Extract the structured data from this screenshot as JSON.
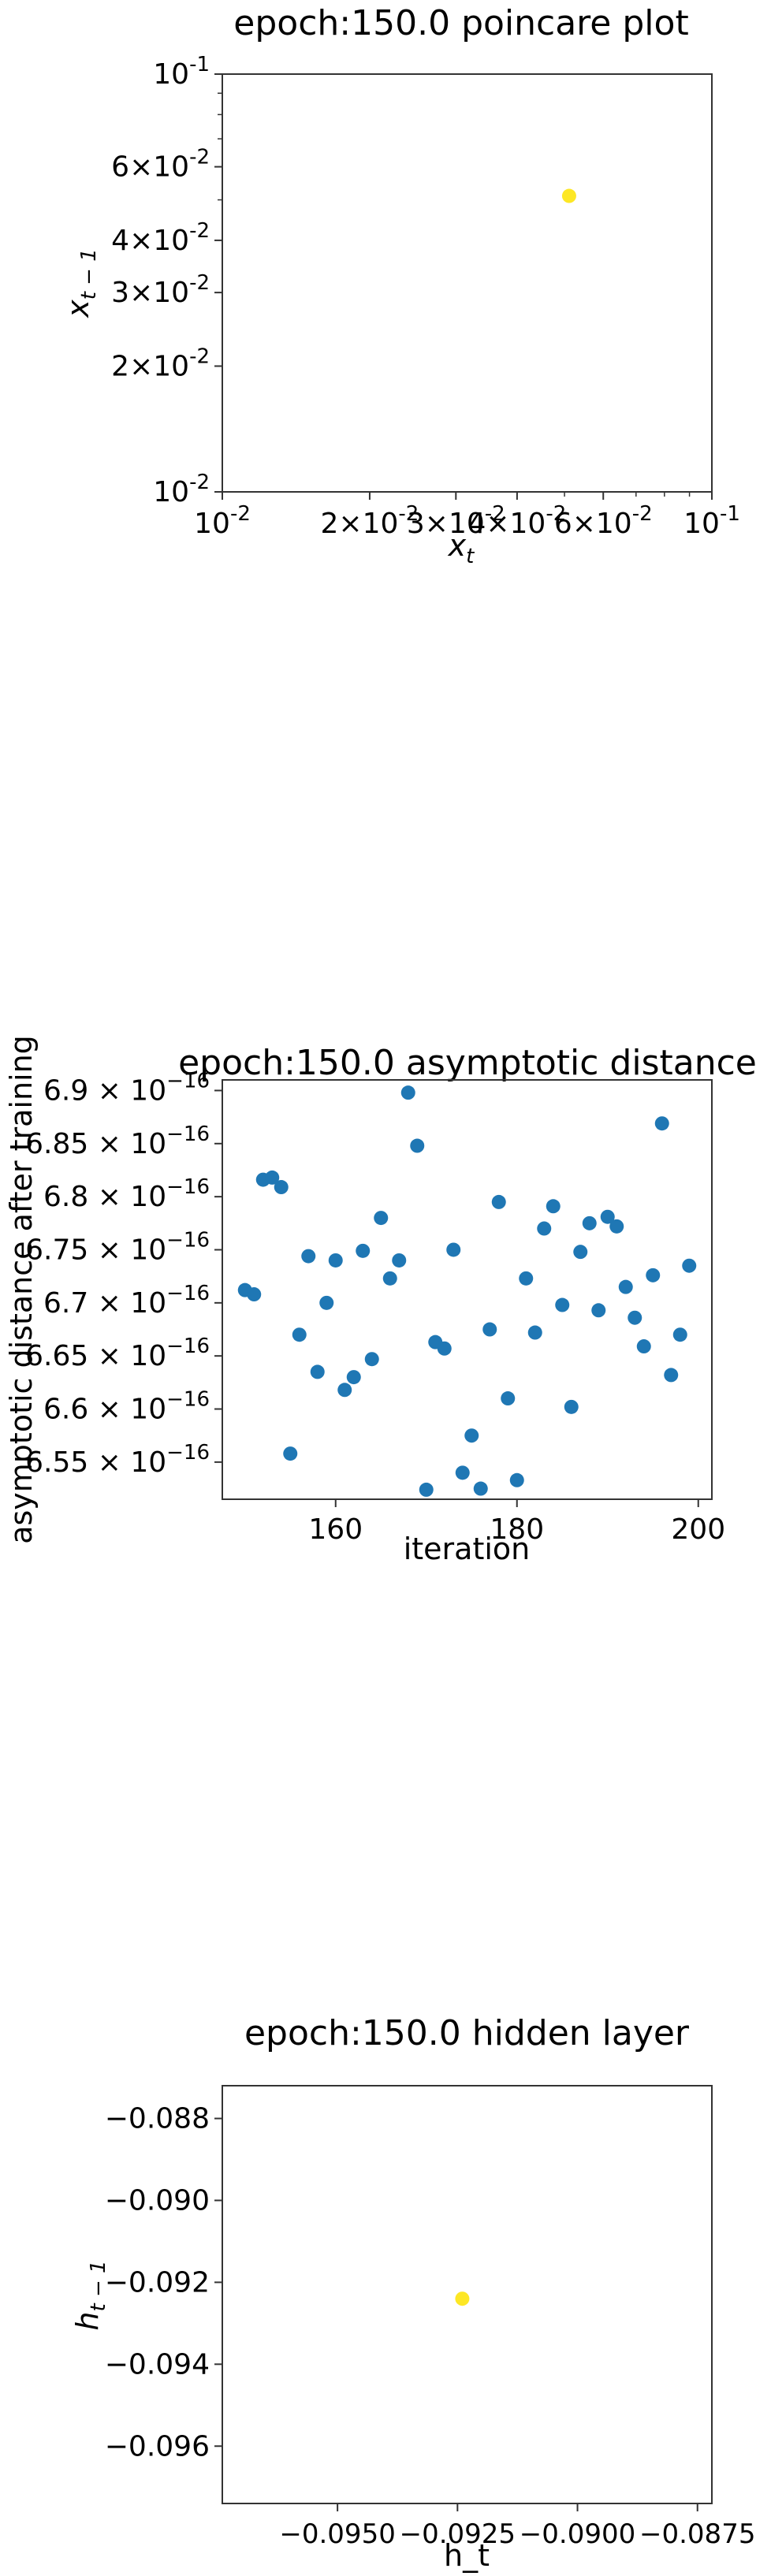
{
  "chart_data": [
    {
      "type": "scatter",
      "title": "epoch:150.0 poincare plot",
      "xlabel": "x_t",
      "ylabel": "x_{t-1}",
      "xscale": "log",
      "yscale": "log",
      "xlim": [
        0.01,
        0.1
      ],
      "ylim": [
        0.01,
        0.1
      ],
      "x_tick_labels": [
        "10^{-2}",
        "2×10^{-2}",
        "3×10^{-2}",
        "4×10^{-2}",
        "6×10^{-2}",
        "10^{-1}"
      ],
      "y_tick_labels": [
        "10^{-2}",
        "2×10^{-2}",
        "3×10^{-2}",
        "4×10^{-2}",
        "6×10^{-2}",
        "10^{-1}"
      ],
      "point_color": "#fde725",
      "points": [
        {
          "x": 0.0511,
          "y": 0.0511
        }
      ]
    },
    {
      "type": "scatter",
      "title": "epoch:150.0 asymptotic distance",
      "xlabel": "iteration",
      "ylabel": "asymptotic distance after training",
      "xlim": [
        147.5,
        201.5
      ],
      "ylim": [
        6.515e-16,
        6.91e-16
      ],
      "x_ticks": [
        160,
        180,
        200
      ],
      "y_ticks": [
        6.55e-16,
        6.6e-16,
        6.65e-16,
        6.7e-16,
        6.75e-16,
        6.8e-16,
        6.85e-16,
        6.9e-16
      ],
      "y_tick_mantissas": [
        "6.55",
        "6.6",
        "6.65",
        "6.7",
        "6.75",
        "6.8",
        "6.85",
        "6.9"
      ],
      "y_tick_exponent": "-16",
      "point_color": "#1f77b4",
      "points": [
        {
          "x": 150,
          "y": 6.712e-16
        },
        {
          "x": 151,
          "y": 6.708e-16
        },
        {
          "x": 152,
          "y": 6.816e-16
        },
        {
          "x": 153,
          "y": 6.818e-16
        },
        {
          "x": 154,
          "y": 6.809e-16
        },
        {
          "x": 155,
          "y": 6.558e-16
        },
        {
          "x": 156,
          "y": 6.67e-16
        },
        {
          "x": 157,
          "y": 6.744e-16
        },
        {
          "x": 158,
          "y": 6.635e-16
        },
        {
          "x": 159,
          "y": 6.7e-16
        },
        {
          "x": 160,
          "y": 6.74e-16
        },
        {
          "x": 161,
          "y": 6.618e-16
        },
        {
          "x": 162,
          "y": 6.63e-16
        },
        {
          "x": 163,
          "y": 6.749e-16
        },
        {
          "x": 164,
          "y": 6.647e-16
        },
        {
          "x": 165,
          "y": 6.78e-16
        },
        {
          "x": 166,
          "y": 6.723e-16
        },
        {
          "x": 167,
          "y": 6.74e-16
        },
        {
          "x": 168,
          "y": 6.898e-16
        },
        {
          "x": 169,
          "y": 6.848e-16
        },
        {
          "x": 170,
          "y": 6.524e-16
        },
        {
          "x": 171,
          "y": 6.663e-16
        },
        {
          "x": 172,
          "y": 6.657e-16
        },
        {
          "x": 173,
          "y": 6.75e-16
        },
        {
          "x": 174,
          "y": 6.54e-16
        },
        {
          "x": 175,
          "y": 6.575e-16
        },
        {
          "x": 176,
          "y": 6.525e-16
        },
        {
          "x": 177,
          "y": 6.675e-16
        },
        {
          "x": 178,
          "y": 6.795e-16
        },
        {
          "x": 179,
          "y": 6.61e-16
        },
        {
          "x": 180,
          "y": 6.533e-16
        },
        {
          "x": 181,
          "y": 6.723e-16
        },
        {
          "x": 182,
          "y": 6.672e-16
        },
        {
          "x": 183,
          "y": 6.77e-16
        },
        {
          "x": 184,
          "y": 6.791e-16
        },
        {
          "x": 185,
          "y": 6.698e-16
        },
        {
          "x": 186,
          "y": 6.602e-16
        },
        {
          "x": 187,
          "y": 6.748e-16
        },
        {
          "x": 188,
          "y": 6.775e-16
        },
        {
          "x": 189,
          "y": 6.693e-16
        },
        {
          "x": 190,
          "y": 6.781e-16
        },
        {
          "x": 191,
          "y": 6.772e-16
        },
        {
          "x": 192,
          "y": 6.715e-16
        },
        {
          "x": 193,
          "y": 6.686e-16
        },
        {
          "x": 194,
          "y": 6.659e-16
        },
        {
          "x": 195,
          "y": 6.726e-16
        },
        {
          "x": 196,
          "y": 6.869e-16
        },
        {
          "x": 197,
          "y": 6.632e-16
        },
        {
          "x": 198,
          "y": 6.67e-16
        },
        {
          "x": 199,
          "y": 6.735e-16
        }
      ]
    },
    {
      "type": "scatter",
      "title": "epoch:150.0 hidden layer",
      "xlabel": "h_t",
      "ylabel": "h_{t-1}",
      "xlim": [
        -0.0974,
        -0.0872
      ],
      "ylim": [
        -0.0974,
        -0.0872
      ],
      "x_ticks": [
        -0.095,
        -0.0925,
        -0.09,
        -0.0875
      ],
      "x_tick_labels": [
        "−0.0950",
        "−0.0925",
        "−0.0900",
        "−0.0875"
      ],
      "y_ticks": [
        -0.096,
        -0.094,
        -0.092,
        -0.09,
        -0.088
      ],
      "y_tick_labels": [
        "−0.096",
        "−0.094",
        "−0.092",
        "−0.090",
        "−0.088"
      ],
      "point_color": "#fde725",
      "points": [
        {
          "x": -0.0924,
          "y": -0.0924
        }
      ]
    }
  ]
}
